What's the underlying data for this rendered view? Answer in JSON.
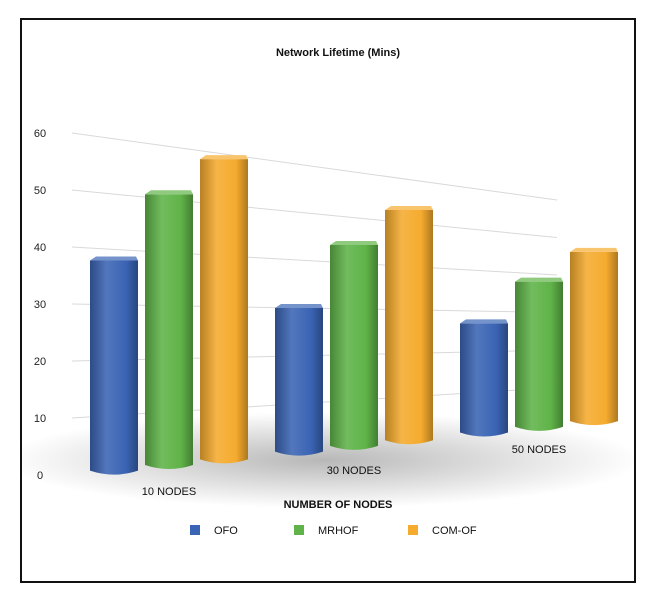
{
  "chart_data": {
    "type": "bar",
    "title": "Network Lifetime (Mins)",
    "xlabel": "NUMBER OF NODES",
    "ylabel": "",
    "ylim": [
      0,
      60
    ],
    "yticks": [
      0,
      10,
      20,
      30,
      40,
      50,
      60
    ],
    "grid": true,
    "legend": "bottom",
    "categories": [
      "10 NODES",
      "30 NODES",
      "50 NODES"
    ],
    "series": [
      {
        "name": "OFO",
        "values": [
          38,
          30,
          27
        ],
        "color": "#3a64b4"
      },
      {
        "name": "MRHOF",
        "values": [
          51,
          44,
          38
        ],
        "color": "#5fb348"
      },
      {
        "name": "COM-OF",
        "values": [
          59,
          53,
          47
        ],
        "color": "#f5ab2e"
      }
    ]
  }
}
